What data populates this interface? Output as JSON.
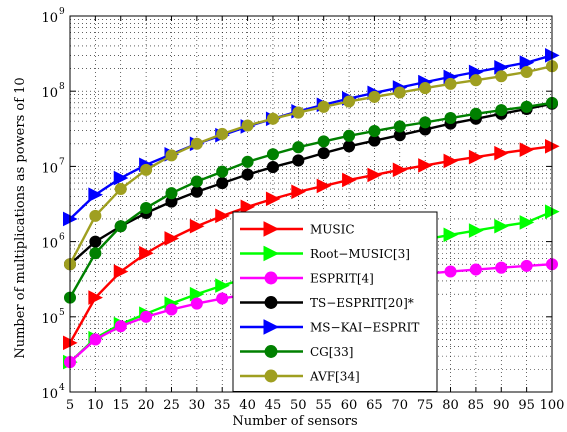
{
  "chart_data": {
    "type": "line",
    "xlabel": "Number of sensors",
    "ylabel": "Number of multiplications as powers of 10",
    "yscale": "log",
    "xlim": [
      5,
      100
    ],
    "ylim": [
      10000,
      1000000000
    ],
    "grid": true,
    "legend_position": "lower-right",
    "x": [
      5,
      10,
      15,
      20,
      25,
      30,
      35,
      40,
      45,
      50,
      55,
      60,
      65,
      70,
      75,
      80,
      85,
      90,
      95,
      100
    ],
    "x_ticks": [
      "5",
      "10",
      "15",
      "20",
      "25",
      "30",
      "35",
      "40",
      "45",
      "50",
      "55",
      "60",
      "65",
      "70",
      "75",
      "80",
      "85",
      "90",
      "95",
      "100"
    ],
    "y_ticks": [
      {
        "value": 10000,
        "base": "10",
        "exp": "4"
      },
      {
        "value": 100000,
        "base": "10",
        "exp": "5"
      },
      {
        "value": 1000000,
        "base": "10",
        "exp": "6"
      },
      {
        "value": 10000000,
        "base": "10",
        "exp": "7"
      },
      {
        "value": 100000000,
        "base": "10",
        "exp": "8"
      },
      {
        "value": 1000000000,
        "base": "10",
        "exp": "9"
      }
    ],
    "series": [
      {
        "name": "MUSIC",
        "color": "#ff0000",
        "marker": "triangle-right",
        "values": [
          45000,
          180000,
          400000,
          700000,
          1100000,
          1600000,
          2200000,
          2900000,
          3700000,
          4600000,
          5500000,
          6600000,
          7700000,
          9000000,
          10300000,
          11800000,
          13300000,
          15000000,
          16700000,
          18500000
        ]
      },
      {
        "name": "Root−MUSIC[3]",
        "color": "#00ff00",
        "marker": "triangle-right",
        "values": [
          25000,
          52000,
          80000,
          110000,
          150000,
          200000,
          260000,
          330000,
          400000,
          480000,
          580000,
          680000,
          800000,
          930000,
          1070000,
          1230000,
          1400000,
          1600000,
          1800000,
          2500000
        ]
      },
      {
        "name": "ESPRIT[4]",
        "color": "#ff00ff",
        "marker": "circle",
        "values": [
          25000,
          50000,
          75000,
          100000,
          125000,
          150000,
          175000,
          200000,
          225000,
          250000,
          275000,
          300000,
          325000,
          350000,
          375000,
          400000,
          425000,
          450000,
          475000,
          500000
        ]
      },
      {
        "name": "TS−ESPRIT[20]*",
        "color": "#000000",
        "marker": "circle",
        "values": [
          500000,
          1000000,
          1600000,
          2400000,
          3400000,
          4600000,
          6000000,
          7800000,
          9800000,
          12000000,
          15000000,
          18500000,
          22000000,
          26000000,
          31000000,
          37000000,
          43000000,
          50000000,
          58000000,
          68000000
        ]
      },
      {
        "name": "MS−KAI−ESPRIT",
        "color": "#0000ff",
        "marker": "triangle-right",
        "values": [
          2000000,
          4200000,
          7000000,
          10500000,
          14500000,
          20000000,
          26000000,
          34000000,
          43000000,
          54000000,
          66000000,
          80000000,
          95000000,
          112000000,
          132000000,
          155000000,
          180000000,
          208000000,
          240000000,
          300000000
        ]
      },
      {
        "name": "CG[33]",
        "color": "#008000",
        "marker": "circle",
        "values": [
          180000,
          700000,
          1600000,
          2800000,
          4400000,
          6300000,
          8500000,
          11500000,
          14500000,
          18000000,
          21500000,
          25500000,
          29500000,
          34000000,
          38500000,
          44000000,
          50000000,
          56000000,
          62000000,
          70000000
        ]
      },
      {
        "name": "AVF[34]",
        "color": "#9f9f20",
        "marker": "circle",
        "values": [
          500000,
          2200000,
          5000000,
          9000000,
          14000000,
          20000000,
          27000000,
          35000000,
          43000000,
          52000000,
          62000000,
          73000000,
          84000000,
          96000000,
          110000000,
          125000000,
          140000000,
          158000000,
          180000000,
          215000000
        ]
      }
    ]
  }
}
